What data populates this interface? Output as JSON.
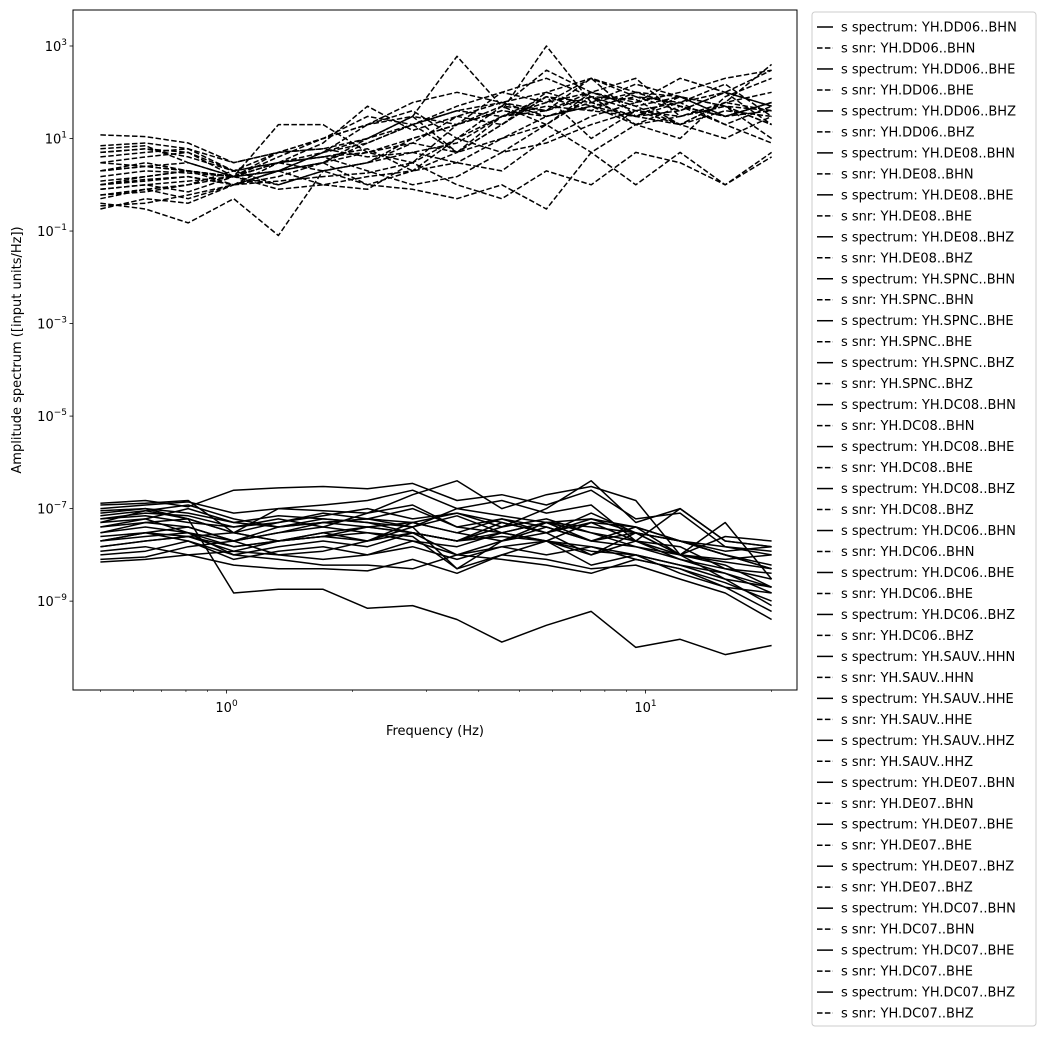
{
  "chart_data": {
    "type": "line",
    "xlabel": "Frequency (Hz)",
    "ylabel": "Amplitude spectrum ([input units/Hz])",
    "xscale": "log",
    "yscale": "log",
    "xlim": [
      0.43,
      23
    ],
    "ylim": [
      1.2e-11,
      6000.0
    ],
    "grid": false,
    "legend_placement": "outside-right",
    "x_ticks": [
      {
        "value": 1,
        "label": "10^0"
      },
      {
        "value": 10,
        "label": "10^1"
      }
    ],
    "y_ticks": [
      {
        "value": 1000.0,
        "label": "10^3"
      },
      {
        "value": 10.0,
        "label": "10^1"
      },
      {
        "value": 0.1,
        "label": "10^-1"
      },
      {
        "value": 0.001,
        "label": "10^-3"
      },
      {
        "value": 1e-05,
        "label": "10^-5"
      },
      {
        "value": 1e-07,
        "label": "10^-7"
      },
      {
        "value": 1e-09,
        "label": "10^-9"
      }
    ],
    "line_color": "#000000",
    "x": [
      0.5,
      0.64,
      0.81,
      1.04,
      1.33,
      1.7,
      2.17,
      2.78,
      3.55,
      4.54,
      5.8,
      7.42,
      9.48,
      12.1,
      15.5,
      20
    ],
    "series": [
      {
        "name": "s spectrum: YH.DD06..BHN",
        "style": "solid",
        "values": [
          1.3e-07,
          1.5e-07,
          1.1e-07,
          2.5e-07,
          2.8e-07,
          3e-07,
          2.7e-07,
          3.5e-07,
          1.5e-07,
          2e-07,
          1.2e-07,
          2.5e-07,
          6e-08,
          8e-08,
          1.5e-08,
          1.2e-08
        ]
      },
      {
        "name": "s snr: YH.DD06..BHN",
        "style": "dashed",
        "values": [
          12,
          11,
          8,
          3,
          5,
          6,
          10,
          30,
          600,
          50,
          300,
          100,
          50,
          20,
          10,
          30
        ]
      },
      {
        "name": "s spectrum: YH.DD06..BHE",
        "style": "solid",
        "values": [
          5e-08,
          9e-08,
          6e-08,
          3e-08,
          5e-08,
          7e-08,
          1e-07,
          6e-08,
          8e-08,
          5e-08,
          3e-08,
          6e-08,
          4e-08,
          2e-08,
          1e-08,
          5e-09
        ]
      },
      {
        "name": "s snr: YH.DD06..BHE",
        "style": "dashed",
        "values": [
          6,
          7,
          3,
          1.5,
          2,
          3,
          5,
          10,
          20,
          40,
          1000,
          60,
          150,
          80,
          30,
          60
        ]
      },
      {
        "name": "s spectrum: YH.DD06..BHZ",
        "style": "solid",
        "values": [
          2e-08,
          2.5e-08,
          3e-08,
          1.5e-08,
          2e-08,
          3e-08,
          4e-08,
          5e-08,
          3e-08,
          6e-08,
          4e-08,
          2e-08,
          3e-08,
          1e-08,
          6e-09,
          2e-09
        ]
      },
      {
        "name": "s snr: YH.DD06..BHZ",
        "style": "dashed",
        "values": [
          3,
          4,
          5,
          2,
          1,
          2,
          3,
          8,
          5,
          30,
          80,
          40,
          100,
          50,
          20,
          8
        ]
      },
      {
        "name": "s spectrum: YH.DE08..BHN",
        "style": "solid",
        "values": [
          1e-08,
          1.2e-08,
          2e-08,
          1e-08,
          1.5e-08,
          2e-08,
          1.5e-08,
          3e-08,
          1e-08,
          2e-08,
          5e-08,
          3e-08,
          1.5e-08,
          8e-09,
          4e-09,
          1.5e-09
        ]
      },
      {
        "name": "s snr: YH.DE08..BHN",
        "style": "dashed",
        "values": [
          1,
          1.5,
          2,
          1.5,
          3,
          8,
          50,
          15,
          30,
          60,
          100,
          200,
          80,
          60,
          100,
          50
        ]
      },
      {
        "name": "s spectrum: YH.DE08..BHE",
        "style": "solid",
        "values": [
          8e-09,
          9e-09,
          1.5e-08,
          2e-08,
          1e-08,
          1.2e-08,
          2e-08,
          4e-08,
          5e-09,
          1e-08,
          2e-08,
          1e-08,
          3e-08,
          1e-08,
          3e-09,
          8e-10
        ]
      },
      {
        "name": "s snr: YH.DE08..BHE",
        "style": "dashed",
        "values": [
          0.5,
          0.8,
          1,
          2,
          5,
          10,
          20,
          30,
          5,
          20,
          80,
          10,
          40,
          60,
          150,
          30
        ]
      },
      {
        "name": "s spectrum: YH.DE08..BHZ",
        "style": "solid",
        "values": [
          3e-08,
          4e-08,
          3e-08,
          2e-08,
          3e-08,
          5e-08,
          4e-08,
          3e-08,
          2e-08,
          4e-08,
          6e-08,
          3e-08,
          2e-08,
          1.5e-08,
          5e-09,
          3e-09
        ]
      },
      {
        "name": "s snr: YH.DE08..BHZ",
        "style": "dashed",
        "values": [
          2,
          3,
          2,
          1.5,
          2,
          3,
          8,
          20,
          40,
          60,
          30,
          50,
          80,
          40,
          100,
          20
        ]
      },
      {
        "name": "s spectrum: YH.SPNC..BHN",
        "style": "solid",
        "values": [
          6e-08,
          8e-08,
          7e-08,
          4e-08,
          6e-08,
          4e-08,
          8e-08,
          1.2e-07,
          4e-08,
          3e-08,
          5e-08,
          4e-08,
          3e-08,
          2e-08,
          1e-08,
          6e-09
        ]
      },
      {
        "name": "s snr: YH.SPNC..BHN",
        "style": "dashed",
        "values": [
          0.4,
          0.3,
          0.15,
          0.5,
          0.08,
          2,
          3,
          5,
          8,
          30,
          40,
          80,
          20,
          10,
          80,
          200
        ]
      },
      {
        "name": "s spectrum: YH.SPNC..BHE",
        "style": "solid",
        "values": [
          4e-08,
          6e-08,
          1e-07,
          5e-08,
          4e-08,
          6e-08,
          5e-08,
          4e-08,
          7e-08,
          3e-08,
          2e-08,
          5e-08,
          2e-08,
          1e-08,
          8e-09,
          1e-08
        ]
      },
      {
        "name": "s snr: YH.SPNC..BHE",
        "style": "dashed",
        "values": [
          5,
          6,
          5,
          1.5,
          20,
          20,
          5,
          3,
          1,
          0.5,
          2,
          1,
          5,
          3,
          1,
          5
        ]
      },
      {
        "name": "s spectrum: YH.SPNC..BHZ",
        "style": "solid",
        "values": [
          1.5e-08,
          2e-08,
          2.5e-08,
          1.2e-08,
          2e-08,
          2.5e-08,
          3e-08,
          2e-08,
          1.5e-08,
          3e-08,
          2e-08,
          1.2e-08,
          1e-08,
          6e-09,
          4e-09,
          2e-09
        ]
      },
      {
        "name": "s snr: YH.SPNC..BHZ",
        "style": "dashed",
        "values": [
          1,
          1.2,
          1.5,
          1,
          3,
          5,
          8,
          20,
          5,
          10,
          30,
          50,
          20,
          30,
          60,
          100
        ]
      },
      {
        "name": "s spectrum: YH.DC08..BHN",
        "style": "solid",
        "values": [
          1e-07,
          1.2e-07,
          1.4e-07,
          8e-08,
          1e-07,
          9e-08,
          8e-08,
          2e-07,
          4e-07,
          1e-07,
          2e-07,
          3e-07,
          1.5e-07,
          1e-08,
          5e-08,
          3e-09
        ]
      },
      {
        "name": "s snr: YH.DC08..BHN",
        "style": "dashed",
        "values": [
          0.8,
          1,
          0.7,
          1.5,
          2,
          1,
          0.8,
          3,
          10,
          50,
          20,
          100,
          200,
          30,
          50,
          20
        ]
      },
      {
        "name": "s spectrum: YH.DC08..BHE",
        "style": "solid",
        "values": [
          7e-08,
          9e-08,
          1.2e-07,
          6e-08,
          4e-08,
          5e-08,
          6e-08,
          5e-08,
          8e-08,
          4e-08,
          1e-07,
          4e-07,
          5e-08,
          1e-07,
          2e-08,
          1.5e-08
        ]
      },
      {
        "name": "s snr: YH.DC08..BHE",
        "style": "dashed",
        "values": [
          0.3,
          0.5,
          0.4,
          1,
          2,
          5,
          10,
          20,
          40,
          30,
          50,
          40,
          30,
          20,
          40,
          30
        ]
      },
      {
        "name": "s spectrum: YH.DC08..BHZ",
        "style": "solid",
        "values": [
          3e-08,
          5e-08,
          6e-08,
          3e-08,
          2e-08,
          2.5e-08,
          4e-08,
          3e-08,
          2e-08,
          5e-08,
          3e-08,
          8e-08,
          3e-08,
          2e-08,
          1e-08,
          5e-09
        ]
      },
      {
        "name": "s snr: YH.DC08..BHZ",
        "style": "dashed",
        "values": [
          3,
          2.5,
          2,
          1.5,
          4,
          10,
          30,
          20,
          50,
          100,
          60,
          200,
          100,
          50,
          30,
          60
        ]
      },
      {
        "name": "s spectrum: YH.DC06..BHN",
        "style": "solid",
        "values": [
          9e-08,
          1e-07,
          8e-08,
          5e-08,
          7e-08,
          6e-08,
          5e-08,
          3e-08,
          2e-08,
          3e-08,
          5e-08,
          2e-08,
          4e-08,
          1e-08,
          2.5e-08,
          2e-08
        ]
      },
      {
        "name": "s snr: YH.DC06..BHN",
        "style": "dashed",
        "values": [
          0.6,
          0.7,
          1,
          1.5,
          3,
          2,
          1,
          0.8,
          0.5,
          1,
          0.3,
          5,
          20,
          50,
          30,
          40
        ]
      },
      {
        "name": "s spectrum: YH.DC06..BHE",
        "style": "solid",
        "values": [
          4e-08,
          5e-08,
          4e-08,
          2e-08,
          3e-08,
          4e-08,
          3e-08,
          2.5e-08,
          5e-09,
          2e-08,
          3e-08,
          1e-08,
          2e-08,
          8e-09,
          5e-09,
          4e-09
        ]
      },
      {
        "name": "s snr: YH.DC06..BHE",
        "style": "dashed",
        "values": [
          7,
          8,
          6,
          3,
          5,
          6,
          4,
          5,
          3,
          2,
          10,
          30,
          60,
          100,
          200,
          300
        ]
      },
      {
        "name": "s spectrum: YH.DC06..BHZ",
        "style": "solid",
        "values": [
          2e-08,
          3e-08,
          2e-08,
          8e-09,
          1.2e-08,
          1.5e-08,
          1e-08,
          1.5e-08,
          8e-09,
          1.5e-08,
          2e-08,
          6e-09,
          1e-08,
          4e-09,
          2e-09,
          1.5e-09
        ]
      },
      {
        "name": "s snr: YH.DC06..BHZ",
        "style": "dashed",
        "values": [
          1.5,
          2,
          1.8,
          1.5,
          3,
          4,
          2,
          1,
          1.5,
          5,
          8,
          20,
          40,
          30,
          50,
          20
        ]
      },
      {
        "name": "s spectrum: YH.SAUV..HHN",
        "style": "solid",
        "values": [
          8e-08,
          1e-07,
          6e-08,
          1.5e-09,
          1.8e-09,
          1.8e-09,
          7e-10,
          8e-10,
          4e-10,
          1.3e-10,
          3e-10,
          6e-10,
          1e-10,
          1.5e-10,
          7e-11,
          1.1e-10
        ]
      },
      {
        "name": "s snr: YH.SAUV..HHN",
        "style": "dashed",
        "values": [
          0.35,
          0.4,
          0.6,
          1,
          2,
          5,
          20,
          40,
          10,
          30,
          60,
          100,
          50,
          80,
          30,
          60
        ]
      },
      {
        "name": "s spectrum: YH.SAUV..HHE",
        "style": "solid",
        "values": [
          5e-08,
          6e-08,
          3e-08,
          1e-08,
          8e-09,
          6e-09,
          6e-09,
          5e-09,
          1e-08,
          8e-09,
          6e-09,
          4e-09,
          8e-09,
          5e-09,
          2e-09,
          6e-10
        ]
      },
      {
        "name": "s snr: YH.SAUV..HHE",
        "style": "dashed",
        "values": [
          2,
          2.5,
          3,
          1.5,
          0.8,
          1,
          1.5,
          2,
          10,
          5,
          20,
          5,
          1,
          5,
          1,
          4
        ]
      },
      {
        "name": "s spectrum: YH.SAUV..HHZ",
        "style": "solid",
        "values": [
          1.2e-08,
          1.5e-08,
          1e-08,
          6e-09,
          5e-09,
          5e-09,
          4.5e-09,
          8e-09,
          4e-09,
          1e-08,
          8e-09,
          5e-09,
          6e-09,
          3e-09,
          1.5e-09,
          4e-10
        ]
      },
      {
        "name": "s snr: YH.SAUV..HHZ",
        "style": "dashed",
        "values": [
          5,
          6,
          4,
          2,
          3,
          4,
          6,
          2,
          3,
          10,
          20,
          80,
          40,
          20,
          60,
          400
        ]
      },
      {
        "name": "s spectrum: YH.DE07..BHN",
        "style": "solid",
        "values": [
          2.5e-08,
          3e-08,
          4e-08,
          2e-08,
          4e-08,
          5e-08,
          6e-08,
          4e-08,
          1e-07,
          7e-08,
          5e-08,
          6e-08,
          3e-08,
          2e-08,
          1.2e-08,
          1.5e-08
        ]
      },
      {
        "name": "s snr: YH.DE07..BHN",
        "style": "dashed",
        "values": [
          0.8,
          1,
          1.2,
          1.5,
          1,
          2,
          3,
          10,
          20,
          40,
          30,
          60,
          100,
          80,
          50,
          10
        ]
      },
      {
        "name": "s spectrum: YH.DE07..BHE",
        "style": "solid",
        "values": [
          1.5e-08,
          2e-08,
          2.5e-08,
          3e-08,
          2e-08,
          3e-08,
          2e-08,
          5e-08,
          3e-08,
          2e-08,
          4e-08,
          2e-08,
          1.5e-08,
          1e-08,
          7e-09,
          5e-09
        ]
      },
      {
        "name": "s snr: YH.DE07..BHE",
        "style": "dashed",
        "values": [
          1.2,
          1.5,
          2,
          1,
          2,
          3,
          10,
          30,
          20,
          50,
          40,
          100,
          60,
          200,
          100,
          50
        ]
      },
      {
        "name": "s spectrum: YH.DE07..BHZ",
        "style": "solid",
        "values": [
          7e-09,
          8e-09,
          1e-08,
          1.2e-08,
          1e-08,
          8e-09,
          1e-08,
          2e-08,
          1e-08,
          1.5e-08,
          1e-08,
          1.5e-08,
          8e-09,
          5e-09,
          2.5e-09,
          1e-09
        ]
      },
      {
        "name": "s snr: YH.DE07..BHZ",
        "style": "dashed",
        "values": [
          0.6,
          0.8,
          0.5,
          1,
          1.5,
          3,
          1,
          2,
          5,
          20,
          100,
          50,
          30,
          80,
          50,
          40
        ]
      },
      {
        "name": "s spectrum: YH.DC07..BHN",
        "style": "solid",
        "values": [
          1.2e-07,
          1.3e-07,
          1.5e-07,
          3e-08,
          1e-07,
          1.2e-07,
          1.5e-07,
          2.5e-07,
          1e-07,
          1.5e-07,
          8e-08,
          1.2e-07,
          2e-08,
          1e-07,
          2e-08,
          1.5e-08
        ]
      },
      {
        "name": "s snr: YH.DC07..BHN",
        "style": "dashed",
        "values": [
          4,
          5,
          6,
          2,
          3,
          4,
          5,
          8,
          30,
          20,
          80,
          60,
          30,
          40,
          100,
          300
        ]
      },
      {
        "name": "s spectrum: YH.DC07..BHE",
        "style": "solid",
        "values": [
          6e-08,
          7e-08,
          5e-08,
          4e-08,
          5e-08,
          8e-08,
          6e-08,
          1e-07,
          4e-08,
          6e-08,
          3e-08,
          5e-08,
          4e-08,
          2e-08,
          1.5e-08,
          1e-08
        ]
      },
      {
        "name": "s snr: YH.DC07..BHE",
        "style": "dashed",
        "values": [
          1,
          1.3,
          1.5,
          1,
          1.2,
          1.5,
          1.8,
          3,
          20,
          100,
          200,
          80,
          70,
          20,
          60,
          40
        ]
      },
      {
        "name": "s spectrum: YH.DC07..BHZ",
        "style": "solid",
        "values": [
          2e-08,
          3e-08,
          2.5e-08,
          1.5e-08,
          2e-08,
          2.5e-08,
          2e-08,
          3e-08,
          2e-08,
          2.5e-08,
          2e-08,
          1.5e-08,
          1e-08,
          6e-09,
          3e-09,
          2e-09
        ]
      },
      {
        "name": "s snr: YH.DC07..BHZ",
        "style": "dashed",
        "values": [
          2,
          2.5,
          2,
          1.5,
          5,
          10,
          20,
          60,
          100,
          60,
          40,
          200,
          30,
          60,
          20,
          50
        ]
      }
    ]
  }
}
